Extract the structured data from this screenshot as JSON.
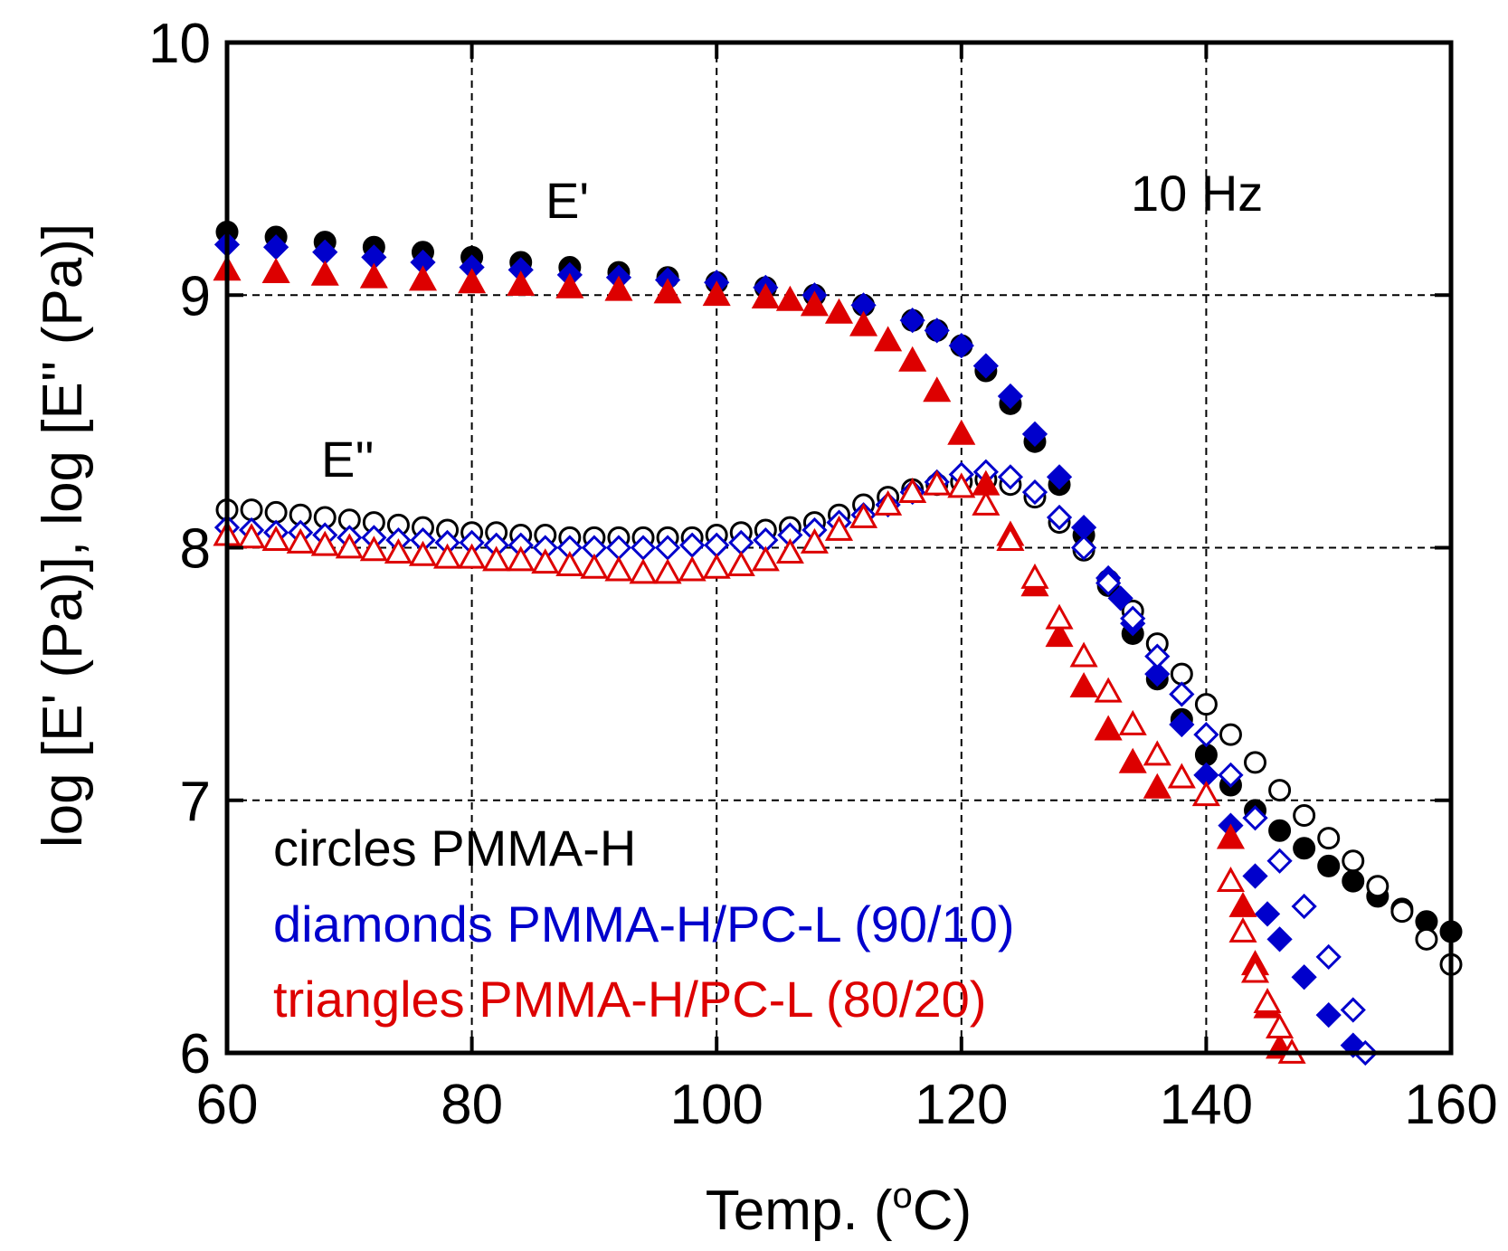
{
  "chart_data": {
    "type": "scatter",
    "xlabel": "Temp. (",
    "xlabel_sup": "o",
    "xlabel_suffix": "C)",
    "ylabel": "log [E' (Pa)], log [E'' (Pa)]",
    "xlim": [
      60,
      160
    ],
    "ylim": [
      6,
      10
    ],
    "x_ticks": [
      60,
      80,
      100,
      120,
      140,
      160
    ],
    "y_ticks": [
      6,
      7,
      8,
      9,
      10
    ],
    "x_tick_labels": [
      "60",
      "80",
      "100",
      "120",
      "140",
      "160"
    ],
    "y_tick_labels": [
      "6",
      "7",
      "8",
      "9",
      "10"
    ],
    "grid": true,
    "annotations": {
      "storage": "E'",
      "loss": "E''",
      "frequency": "10 Hz"
    },
    "legend": [
      {
        "prefix": "circles",
        "name": "PMMA-H",
        "color": "#000000"
      },
      {
        "prefix": "diamonds",
        "name": "PMMA-H/PC-L (90/10)",
        "color": "#0000cc"
      },
      {
        "prefix": "triangles",
        "name": "PMMA-H/PC-L (80/20)",
        "color": "#dd0000"
      }
    ],
    "series": [
      {
        "name": "PMMA-H E'",
        "marker": "circle",
        "filled": true,
        "color": "#000000",
        "x": [
          60,
          64,
          68,
          72,
          76,
          80,
          84,
          88,
          92,
          96,
          100,
          104,
          108,
          112,
          116,
          118,
          120,
          122,
          124,
          126,
          128,
          130,
          132,
          134,
          136,
          138,
          140,
          142,
          144,
          146,
          148,
          150,
          152,
          154,
          156,
          158,
          160
        ],
        "values": [
          9.25,
          9.23,
          9.21,
          9.19,
          9.17,
          9.15,
          9.13,
          9.11,
          9.09,
          9.07,
          9.05,
          9.03,
          9.0,
          8.96,
          8.9,
          8.86,
          8.8,
          8.7,
          8.57,
          8.42,
          8.25,
          8.05,
          7.85,
          7.66,
          7.48,
          7.32,
          7.18,
          7.06,
          6.96,
          6.88,
          6.81,
          6.74,
          6.68,
          6.62,
          6.57,
          6.52,
          6.48
        ]
      },
      {
        "name": "PMMA-H E''",
        "marker": "circle",
        "filled": false,
        "color": "#000000",
        "x": [
          60,
          62,
          64,
          66,
          68,
          70,
          72,
          74,
          76,
          78,
          80,
          82,
          84,
          86,
          88,
          90,
          92,
          94,
          96,
          98,
          100,
          102,
          104,
          106,
          108,
          110,
          112,
          114,
          116,
          118,
          120,
          122,
          124,
          126,
          128,
          130,
          132,
          134,
          136,
          138,
          140,
          142,
          144,
          146,
          148,
          150,
          152,
          154,
          156,
          158,
          160
        ],
        "values": [
          8.15,
          8.15,
          8.14,
          8.13,
          8.12,
          8.11,
          8.1,
          8.09,
          8.08,
          8.07,
          8.06,
          8.06,
          8.05,
          8.05,
          8.04,
          8.04,
          8.04,
          8.04,
          8.04,
          8.04,
          8.05,
          8.06,
          8.07,
          8.08,
          8.1,
          8.13,
          8.17,
          8.2,
          8.23,
          8.25,
          8.26,
          8.27,
          8.25,
          8.2,
          8.1,
          7.99,
          7.87,
          7.75,
          7.62,
          7.5,
          7.38,
          7.26,
          7.15,
          7.04,
          6.94,
          6.85,
          6.76,
          6.66,
          6.56,
          6.45,
          6.35
        ]
      },
      {
        "name": "PMMA-H/PC-L (90/10) E'",
        "marker": "diamond",
        "filled": true,
        "color": "#0000cc",
        "x": [
          60,
          64,
          68,
          72,
          76,
          80,
          84,
          88,
          92,
          96,
          100,
          104,
          108,
          112,
          116,
          118,
          120,
          122,
          124,
          126,
          128,
          130,
          132,
          133,
          134,
          136,
          138,
          140,
          142,
          144,
          145,
          146,
          148,
          150,
          152
        ],
        "values": [
          9.2,
          9.19,
          9.17,
          9.15,
          9.13,
          9.11,
          9.1,
          9.08,
          9.07,
          9.06,
          9.05,
          9.03,
          9.0,
          8.96,
          8.9,
          8.86,
          8.8,
          8.72,
          8.6,
          8.45,
          8.28,
          8.08,
          7.88,
          7.8,
          7.7,
          7.5,
          7.3,
          7.1,
          6.9,
          6.7,
          6.55,
          6.45,
          6.3,
          6.15,
          6.03
        ]
      },
      {
        "name": "PMMA-H/PC-L (90/10) E''",
        "marker": "diamond",
        "filled": false,
        "color": "#0000cc",
        "x": [
          60,
          62,
          64,
          66,
          68,
          70,
          72,
          74,
          76,
          78,
          80,
          82,
          84,
          86,
          88,
          90,
          92,
          94,
          96,
          98,
          100,
          102,
          104,
          106,
          108,
          110,
          112,
          114,
          116,
          118,
          120,
          122,
          124,
          126,
          128,
          130,
          132,
          134,
          136,
          138,
          140,
          142,
          144,
          146,
          148,
          150,
          152,
          153
        ],
        "values": [
          8.08,
          8.07,
          8.06,
          8.06,
          8.05,
          8.04,
          8.04,
          8.03,
          8.03,
          8.02,
          8.02,
          8.01,
          8.01,
          8.0,
          8.0,
          8.0,
          8.0,
          8.0,
          8.0,
          8.01,
          8.01,
          8.02,
          8.03,
          8.05,
          8.07,
          8.1,
          8.13,
          8.17,
          8.22,
          8.26,
          8.29,
          8.3,
          8.28,
          8.22,
          8.12,
          8.0,
          7.86,
          7.72,
          7.57,
          7.42,
          7.26,
          7.1,
          6.93,
          6.76,
          6.58,
          6.38,
          6.17,
          6.0
        ]
      },
      {
        "name": "PMMA-H/PC-L (80/20) E'",
        "marker": "triangle",
        "filled": true,
        "color": "#dd0000",
        "x": [
          60,
          64,
          68,
          72,
          76,
          80,
          84,
          88,
          92,
          96,
          100,
          104,
          106,
          108,
          110,
          112,
          114,
          116,
          118,
          120,
          122,
          124,
          126,
          128,
          130,
          132,
          134,
          136,
          142,
          143,
          144,
          145,
          146
        ],
        "values": [
          9.1,
          9.09,
          9.08,
          9.07,
          9.06,
          9.05,
          9.04,
          9.03,
          9.02,
          9.01,
          9.0,
          8.99,
          8.98,
          8.96,
          8.93,
          8.88,
          8.82,
          8.74,
          8.62,
          8.45,
          8.25,
          8.05,
          7.85,
          7.65,
          7.45,
          7.28,
          7.15,
          7.05,
          6.85,
          6.58,
          6.35,
          6.18,
          6.02
        ]
      },
      {
        "name": "PMMA-H/PC-L (80/20) E''",
        "marker": "triangle",
        "filled": false,
        "color": "#dd0000",
        "x": [
          60,
          62,
          64,
          66,
          68,
          70,
          72,
          74,
          76,
          78,
          80,
          82,
          84,
          86,
          88,
          90,
          92,
          94,
          96,
          98,
          100,
          102,
          104,
          106,
          108,
          110,
          112,
          114,
          116,
          118,
          120,
          122,
          124,
          126,
          128,
          130,
          132,
          134,
          136,
          138,
          140,
          142,
          143,
          144,
          145,
          146,
          147
        ],
        "values": [
          8.05,
          8.04,
          8.03,
          8.02,
          8.01,
          8.0,
          7.99,
          7.98,
          7.97,
          7.96,
          7.96,
          7.95,
          7.95,
          7.94,
          7.93,
          7.92,
          7.91,
          7.9,
          7.9,
          7.91,
          7.92,
          7.93,
          7.95,
          7.98,
          8.02,
          8.07,
          8.12,
          8.17,
          8.22,
          8.25,
          8.24,
          8.17,
          8.03,
          7.88,
          7.72,
          7.57,
          7.43,
          7.3,
          7.18,
          7.09,
          7.02,
          6.68,
          6.48,
          6.32,
          6.2,
          6.1,
          6.0
        ]
      }
    ]
  }
}
